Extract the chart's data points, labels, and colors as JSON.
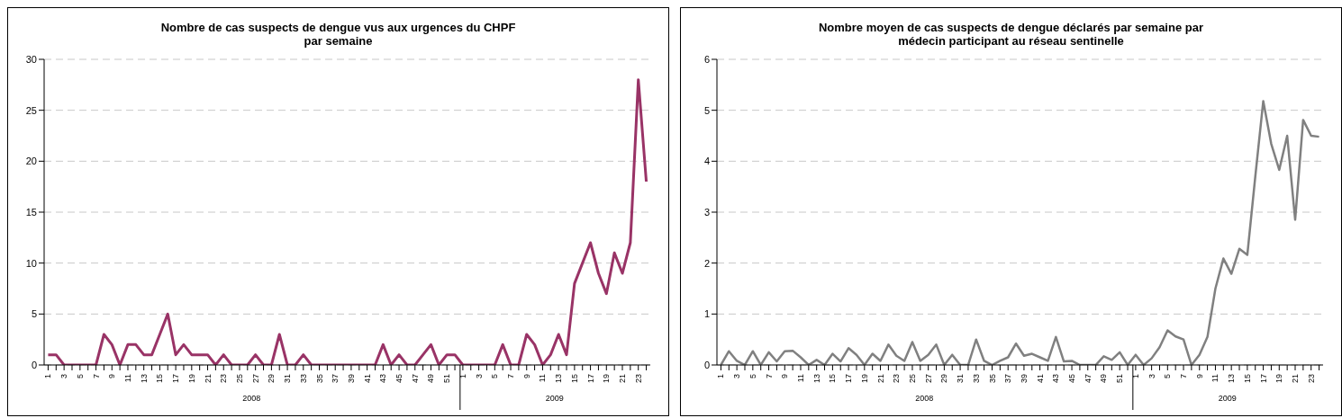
{
  "chart_data": [
    {
      "type": "line",
      "title": "Nombre de cas suspects de dengue vus aux urgences du CHPF\npar semaine",
      "categories": [
        "1",
        null,
        "3",
        null,
        "5",
        null,
        "7",
        null,
        "9",
        null,
        "11",
        null,
        "13",
        null,
        "15",
        null,
        "17",
        null,
        "19",
        null,
        "21",
        null,
        "23",
        null,
        "25",
        null,
        "27",
        null,
        "29",
        null,
        "31",
        null,
        "33",
        null,
        "35",
        null,
        "37",
        null,
        "39",
        null,
        "41",
        null,
        "43",
        null,
        "45",
        null,
        "47",
        null,
        "49",
        null,
        "51",
        null,
        "1",
        null,
        "3",
        null,
        "5",
        null,
        "7",
        null,
        "9",
        null,
        "11",
        null,
        "13",
        null,
        "15",
        null,
        "17",
        null,
        "19",
        null,
        "21",
        null,
        "23",
        null
      ],
      "series": [
        {
          "color": "#993366",
          "values": [
            1,
            1,
            0,
            0,
            0,
            0,
            0,
            3,
            2,
            0,
            2,
            2,
            1,
            1,
            3,
            5,
            1,
            2,
            1,
            1,
            1,
            0,
            1,
            0,
            0,
            0,
            1,
            0,
            0,
            3,
            0,
            0,
            1,
            0,
            0,
            0,
            0,
            0,
            0,
            0,
            0,
            0,
            2,
            0,
            1,
            0,
            0,
            1,
            2,
            0,
            1,
            1,
            0,
            0,
            0,
            0,
            0,
            2,
            0,
            0,
            3,
            2,
            0,
            1,
            3,
            1,
            8,
            10,
            12,
            9,
            7,
            11,
            9,
            12,
            28,
            18
          ]
        }
      ],
      "ylim": [
        0,
        30
      ],
      "yticks": [
        0,
        5,
        10,
        15,
        20,
        25,
        30
      ],
      "grid": "y",
      "marker": "none",
      "line_style": "solid",
      "legend": false,
      "annotations": [
        "2008",
        "2009"
      ]
    },
    {
      "type": "line",
      "title": "Nombre moyen de cas suspects de dengue déclarés par semaine par\nmédecin participant au réseau sentinelle",
      "categories": [
        "1",
        null,
        "3",
        null,
        "5",
        null,
        "7",
        null,
        "9",
        null,
        "11",
        null,
        "13",
        null,
        "15",
        null,
        "17",
        null,
        "19",
        null,
        "21",
        null,
        "23",
        null,
        "25",
        null,
        "27",
        null,
        "29",
        null,
        "31",
        null,
        "33",
        null,
        "35",
        null,
        "37",
        null,
        "39",
        null,
        "41",
        null,
        "43",
        null,
        "45",
        null,
        "47",
        null,
        "49",
        null,
        "51",
        null,
        "1",
        null,
        "3",
        null,
        "5",
        null,
        "7",
        null,
        "9",
        null,
        "11",
        null,
        "13",
        null,
        "15",
        null,
        "17",
        null,
        "19",
        null,
        "21",
        null,
        "23",
        null
      ],
      "series": [
        {
          "color": "#808080",
          "values": [
            0,
            0.27,
            0.08,
            0,
            0.27,
            0,
            0.25,
            0.07,
            0.27,
            0.28,
            0.15,
            0,
            0.1,
            0,
            0.22,
            0.07,
            0.33,
            0.2,
            0,
            0.22,
            0.08,
            0.4,
            0.18,
            0.08,
            0.45,
            0.08,
            0.2,
            0.4,
            0,
            0.2,
            0,
            0,
            0.5,
            0.08,
            0,
            0.08,
            0.15,
            0.42,
            0.18,
            0.22,
            0.15,
            0.08,
            0.55,
            0.07,
            0.08,
            0,
            0,
            0,
            0.17,
            0.1,
            0.25,
            0,
            0.2,
            0,
            0.13,
            0.35,
            0.68,
            0.56,
            0.5,
            0,
            0.2,
            0.55,
            1.5,
            2.09,
            1.79,
            2.28,
            2.16,
            3.7,
            5.18,
            4.34,
            3.83,
            4.5,
            2.85,
            4.81,
            4.5,
            4.48
          ]
        }
      ],
      "ylim": [
        0,
        6
      ],
      "yticks": [
        0,
        1,
        2,
        3,
        4,
        5,
        6
      ],
      "grid": "y",
      "marker": "none",
      "line_style": "solid",
      "legend": false,
      "annotations": [
        "2008",
        "2009"
      ]
    }
  ]
}
